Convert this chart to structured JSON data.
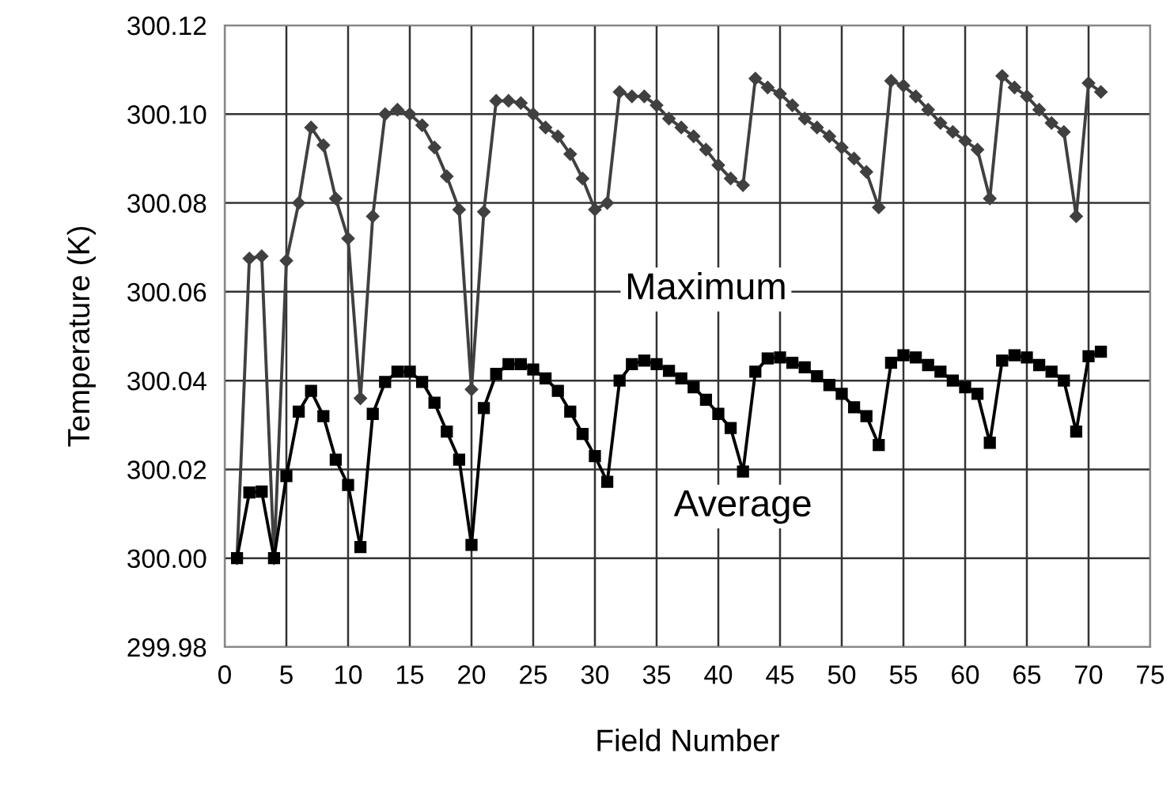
{
  "chart_data": {
    "type": "line",
    "xlabel": "Field Number",
    "ylabel": "Temperature (K)",
    "x": [
      1,
      2,
      3,
      4,
      5,
      6,
      7,
      8,
      9,
      10,
      11,
      12,
      13,
      14,
      15,
      16,
      17,
      18,
      19,
      20,
      21,
      22,
      23,
      24,
      25,
      26,
      27,
      28,
      29,
      30,
      31,
      32,
      33,
      34,
      35,
      36,
      37,
      38,
      39,
      40,
      41,
      42,
      43,
      44,
      45,
      46,
      47,
      48,
      49,
      50,
      51,
      52,
      53,
      54,
      55,
      56,
      57,
      58,
      59,
      60,
      61,
      62,
      63,
      64,
      65,
      66,
      67,
      68,
      69,
      70,
      71
    ],
    "series": [
      {
        "name": "Maximum",
        "color": "#404040",
        "marker": "diamond",
        "values": [
          300.0,
          300.0675,
          300.068,
          300.0,
          300.067,
          300.08,
          300.097,
          300.093,
          300.081,
          300.072,
          300.036,
          300.077,
          300.1,
          300.101,
          300.1,
          300.0975,
          300.0925,
          300.086,
          300.0785,
          300.038,
          300.078,
          300.103,
          300.103,
          300.1025,
          300.1,
          300.097,
          300.095,
          300.091,
          300.0855,
          300.0785,
          300.08,
          300.105,
          300.104,
          300.104,
          300.102,
          300.099,
          300.097,
          300.095,
          300.092,
          300.0885,
          300.0855,
          300.084,
          300.108,
          300.106,
          300.1046,
          300.102,
          300.099,
          300.097,
          300.095,
          300.0925,
          300.09,
          300.087,
          300.079,
          300.1075,
          300.1064,
          300.104,
          300.101,
          300.098,
          300.096,
          300.094,
          300.092,
          300.081,
          300.1086,
          300.106,
          300.104,
          300.101,
          300.098,
          300.096,
          300.077,
          300.107,
          300.105
        ]
      },
      {
        "name": "Average",
        "color": "#000000",
        "marker": "square",
        "values": [
          300.0,
          300.0148,
          300.015,
          300.0,
          300.0185,
          300.033,
          300.0377,
          300.032,
          300.0222,
          300.0165,
          300.0025,
          300.0325,
          300.0397,
          300.042,
          300.042,
          300.0397,
          300.035,
          300.0285,
          300.0222,
          300.003,
          300.0338,
          300.0415,
          300.0437,
          300.0437,
          300.0425,
          300.0405,
          300.0377,
          300.033,
          300.028,
          300.023,
          300.0172,
          300.04,
          300.0437,
          300.0445,
          300.0437,
          300.0422,
          300.0405,
          300.0385,
          300.0357,
          300.0325,
          300.0293,
          300.0195,
          300.042,
          300.045,
          300.0452,
          300.044,
          300.043,
          300.041,
          300.039,
          300.037,
          300.034,
          300.032,
          300.0255,
          300.044,
          300.0457,
          300.0452,
          300.0435,
          300.042,
          300.04,
          300.0385,
          300.037,
          300.026,
          300.0445,
          300.0457,
          300.0452,
          300.0435,
          300.042,
          300.04,
          300.0285,
          300.0455,
          300.0465
        ]
      }
    ],
    "xlim": [
      0,
      75
    ],
    "xticks": [
      0,
      5,
      10,
      15,
      20,
      25,
      30,
      35,
      40,
      45,
      50,
      55,
      60,
      65,
      70,
      75
    ],
    "ylim": [
      299.98,
      300.12
    ],
    "yticks": [
      {
        "value": 299.98,
        "label": "299.98"
      },
      {
        "value": 300.0,
        "label": "300.00"
      },
      {
        "value": 300.02,
        "label": "300.02"
      },
      {
        "value": 300.04,
        "label": "300.04"
      },
      {
        "value": 300.06,
        "label": "300.06"
      },
      {
        "value": 300.08,
        "label": "300.08"
      },
      {
        "value": 300.1,
        "label": "300.10"
      },
      {
        "value": 300.12,
        "label": "300.12"
      }
    ],
    "grid": true,
    "legend": false,
    "line_style": "solid"
  }
}
